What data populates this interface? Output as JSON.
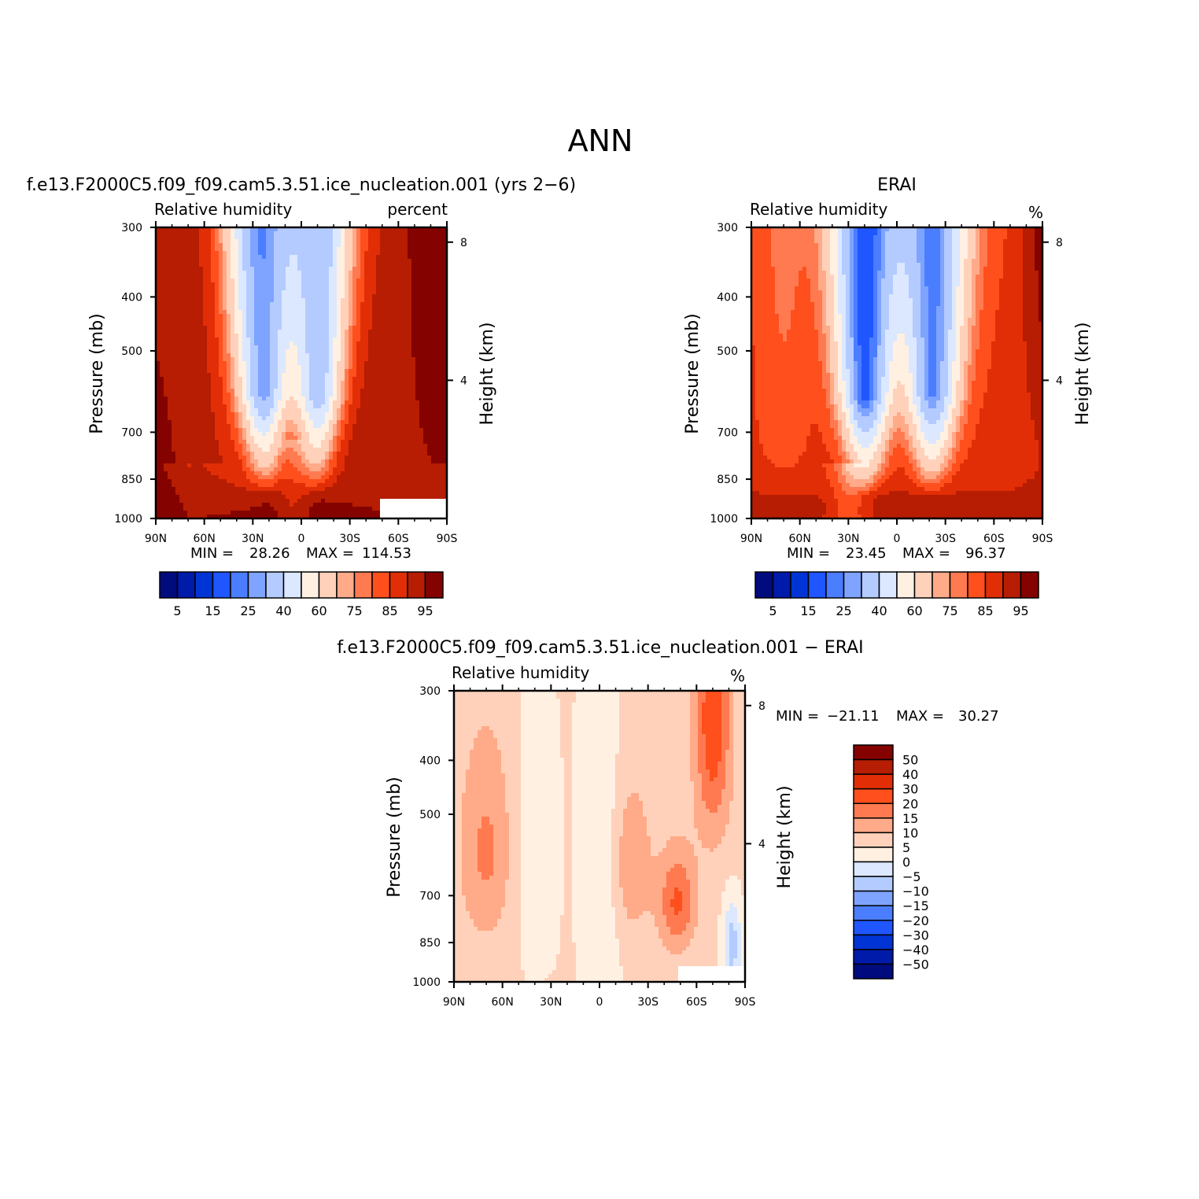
{
  "figure_title": "ANN",
  "colors": {
    "rh_colormap": [
      "#000c7d",
      "#001aaa",
      "#0034d4",
      "#1f56ff",
      "#4b7dff",
      "#7fa4ff",
      "#b4cbff",
      "#dbe8ff",
      "#fff0e2",
      "#ffd1ba",
      "#ffaa88",
      "#ff7a50",
      "#fe4f1d",
      "#e22e06",
      "#b61d02",
      "#840300"
    ],
    "diff_colormap": [
      "#000c7d",
      "#001aaa",
      "#0034d4",
      "#1f56ff",
      "#4b7dff",
      "#7fa4ff",
      "#b4cbff",
      "#dbe8ff",
      "#fff0e2",
      "#ffd1ba",
      "#ffaa88",
      "#ff7a50",
      "#fe4f1d",
      "#e22e06",
      "#b61d02",
      "#840300"
    ]
  },
  "chart_data": [
    {
      "type": "heatmap",
      "title": "f.e13.F2000C5.f09_f09.cam5.3.51.ice_nucleation.001 (yrs 2−6)",
      "left_subtitle": "Relative humidity",
      "right_subtitle": "percent",
      "xlabel": "",
      "ylabel": "Pressure (mb)",
      "y2label": "Height (km)",
      "x_ticks": [
        "90N",
        "60N",
        "30N",
        "0",
        "30S",
        "60S",
        "90S"
      ],
      "y_ticks": [
        "300",
        "400",
        "500",
        "700",
        "850",
        "1000"
      ],
      "y2_ticks": [
        "8",
        "4"
      ],
      "ylim": [
        1000,
        300
      ],
      "min_label": "MIN =",
      "min_value": "28.26",
      "max_label": "MAX =",
      "max_value": "114.53",
      "colorbar_labels": [
        "5",
        "15",
        "25",
        "40",
        "60",
        "75",
        "85",
        "95"
      ],
      "field": {
        "lat_min": [
          -8,
          22
        ],
        "min_value": 28.26,
        "max_value": 114.53
      }
    },
    {
      "type": "heatmap",
      "title": "ERAI",
      "left_subtitle": "Relative humidity",
      "right_subtitle": "%",
      "xlabel": "",
      "ylabel": "Pressure (mb)",
      "y2label": "Height (km)",
      "x_ticks": [
        "90N",
        "60N",
        "30N",
        "0",
        "30S",
        "60S",
        "90S"
      ],
      "y_ticks": [
        "300",
        "400",
        "500",
        "700",
        "850",
        "1000"
      ],
      "y2_ticks": [
        "8",
        "4"
      ],
      "ylim": [
        1000,
        300
      ],
      "min_label": "MIN =",
      "min_value": "23.45",
      "max_label": "MAX =",
      "max_value": "96.37",
      "colorbar_labels": [
        "5",
        "15",
        "25",
        "40",
        "60",
        "75",
        "85",
        "95"
      ],
      "field": {
        "lat_min": [
          -20,
          20
        ],
        "min_value": 23.45,
        "max_value": 96.37
      }
    },
    {
      "type": "heatmap",
      "title": "f.e13.F2000C5.f09_f09.cam5.3.51.ice_nucleation.001 − ERAI",
      "left_subtitle": "Relative humidity",
      "right_subtitle": "%",
      "xlabel": "",
      "ylabel": "Pressure (mb)",
      "y2label": "Height (km)",
      "x_ticks": [
        "90N",
        "60N",
        "30N",
        "0",
        "30S",
        "60S",
        "90S"
      ],
      "y_ticks": [
        "300",
        "400",
        "500",
        "700",
        "850",
        "1000"
      ],
      "y2_ticks": [
        "8",
        "4"
      ],
      "ylim": [
        1000,
        300
      ],
      "min_label": "MIN =",
      "min_value": "−21.11",
      "max_label": "MAX =",
      "max_value": "30.27",
      "colorbar_labels": [
        "50",
        "40",
        "30",
        "20",
        "15",
        "10",
        "5",
        "0",
        "−5",
        "−10",
        "−15",
        "−20",
        "−30",
        "−40",
        "−50"
      ],
      "field": {
        "min_value": -21.11,
        "max_value": 30.27
      }
    }
  ]
}
